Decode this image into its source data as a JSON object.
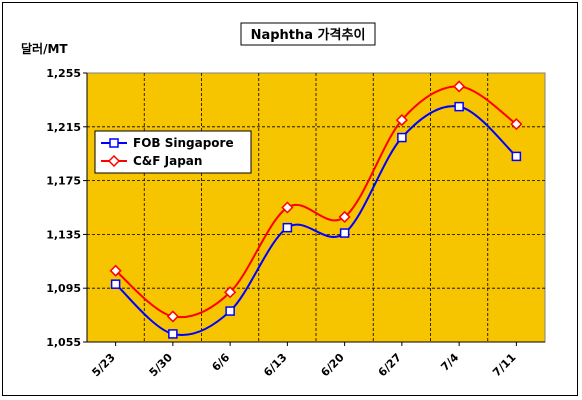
{
  "chart_data": {
    "type": "line",
    "title": "Naphtha 가격추이",
    "ylabel": "달러/MT",
    "xlabel": "",
    "categories": [
      "5/23",
      "5/30",
      "6/6",
      "6/13",
      "6/20",
      "6/27",
      "7/4",
      "7/11"
    ],
    "yticks": [
      "1,055",
      "1,095",
      "1,135",
      "1,175",
      "1,215",
      "1,255"
    ],
    "ylim": [
      1055,
      1255
    ],
    "grid": true,
    "legend_position": "left",
    "background_color": "#F7C400",
    "series": [
      {
        "name": "FOB Singapore",
        "color": "#0000FF",
        "marker": "square",
        "values": [
          1098,
          1061,
          1078,
          1140,
          1136,
          1207,
          1230,
          1193
        ]
      },
      {
        "name": "C&F Japan",
        "color": "#FF0000",
        "marker": "diamond",
        "values": [
          1108,
          1074,
          1092,
          1155,
          1148,
          1220,
          1245,
          1217
        ]
      }
    ]
  }
}
